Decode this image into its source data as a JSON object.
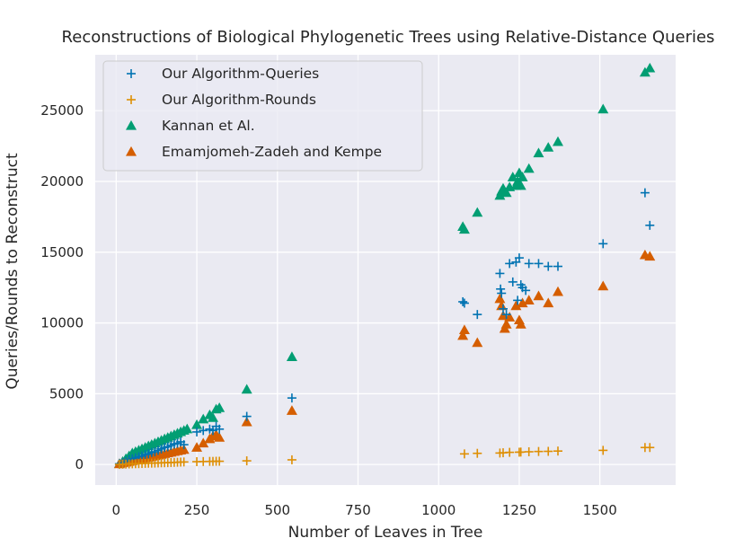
{
  "chart_data": {
    "type": "scatter",
    "title": "Reconstructions of Biological Phylogenetic Trees using Relative-Distance Queries",
    "xlabel": "Number of Leaves in Tree",
    "ylabel": "Queries/Rounds to Reconstruct",
    "xlim": [
      -65,
      1735
    ],
    "ylim": [
      -1450,
      28950
    ],
    "xticks": [
      0,
      250,
      500,
      750,
      1000,
      1250,
      1500
    ],
    "yticks": [
      0,
      5000,
      10000,
      15000,
      20000,
      25000
    ],
    "x_tick_labels": [
      "0",
      "250",
      "500",
      "750",
      "1000",
      "1250",
      "1500"
    ],
    "y_tick_labels": [
      "0",
      "5000",
      "10000",
      "15000",
      "20000",
      "25000"
    ],
    "grid": true,
    "legend_position": "top-left",
    "series": [
      {
        "name": "Our Algorithm-Queries",
        "marker": "plus",
        "color": "#0173b2",
        "x": [
          10,
          20,
          30,
          40,
          50,
          60,
          70,
          80,
          90,
          100,
          110,
          120,
          130,
          140,
          150,
          160,
          170,
          180,
          190,
          200,
          210,
          250,
          270,
          290,
          300,
          310,
          320,
          405,
          545,
          1075,
          1080,
          1120,
          1190,
          1192,
          1195,
          1200,
          1210,
          1220,
          1230,
          1240,
          1245,
          1250,
          1255,
          1260,
          1270,
          1280,
          1310,
          1340,
          1370,
          1510,
          1640,
          1655
        ],
        "y": [
          50,
          130,
          240,
          350,
          400,
          470,
          550,
          600,
          700,
          750,
          850,
          900,
          1000,
          1100,
          1200,
          1250,
          1350,
          1450,
          1500,
          1600,
          1400,
          2300,
          2400,
          2500,
          2400,
          2700,
          2500,
          3400,
          4700,
          11500,
          11400,
          10600,
          13500,
          12400,
          12100,
          11000,
          10600,
          14200,
          12900,
          14300,
          11600,
          14600,
          12700,
          12500,
          12300,
          14200,
          14200,
          14000,
          14000,
          15600,
          19200,
          16900
        ]
      },
      {
        "name": "Our Algorithm-Rounds",
        "marker": "plus",
        "color": "#de8f05",
        "x": [
          10,
          20,
          30,
          40,
          50,
          60,
          70,
          80,
          90,
          100,
          110,
          120,
          130,
          140,
          150,
          160,
          170,
          180,
          190,
          200,
          210,
          250,
          270,
          290,
          300,
          310,
          320,
          405,
          545,
          1080,
          1120,
          1190,
          1200,
          1220,
          1250,
          1255,
          1280,
          1310,
          1340,
          1370,
          1510,
          1640,
          1655
        ],
        "y": [
          5,
          20,
          30,
          40,
          50,
          55,
          60,
          70,
          80,
          90,
          95,
          100,
          110,
          120,
          125,
          130,
          140,
          150,
          160,
          170,
          180,
          200,
          210,
          220,
          220,
          230,
          230,
          260,
          330,
          750,
          790,
          810,
          830,
          860,
          870,
          880,
          900,
          920,
          930,
          950,
          1000,
          1200,
          1200
        ]
      },
      {
        "name": "Kannan et Al.",
        "marker": "triangle",
        "color": "#029e73",
        "x": [
          10,
          20,
          30,
          40,
          50,
          60,
          70,
          80,
          90,
          100,
          110,
          120,
          130,
          140,
          150,
          160,
          170,
          180,
          190,
          200,
          210,
          220,
          250,
          270,
          290,
          300,
          310,
          320,
          405,
          545,
          1075,
          1080,
          1120,
          1190,
          1195,
          1200,
          1210,
          1220,
          1230,
          1240,
          1245,
          1250,
          1255,
          1260,
          1280,
          1310,
          1340,
          1370,
          1510,
          1640,
          1655
        ],
        "y": [
          50,
          200,
          400,
          600,
          800,
          900,
          1000,
          1100,
          1200,
          1300,
          1400,
          1500,
          1600,
          1700,
          1800,
          1900,
          2000,
          2100,
          2200,
          2300,
          2400,
          2500,
          2800,
          3200,
          3500,
          3300,
          3900,
          4000,
          5300,
          7600,
          16800,
          16600,
          17800,
          19000,
          19300,
          19500,
          19200,
          19600,
          20300,
          19700,
          20000,
          20600,
          19700,
          20300,
          20900,
          22000,
          22400,
          22800,
          25100,
          27700,
          28000
        ]
      },
      {
        "name": "Emamjomeh-Zadeh and Kempe",
        "marker": "triangle",
        "color": "#d55e00",
        "x": [
          10,
          20,
          30,
          40,
          50,
          60,
          70,
          80,
          90,
          100,
          110,
          120,
          130,
          140,
          150,
          160,
          170,
          180,
          190,
          200,
          210,
          250,
          270,
          290,
          300,
          310,
          320,
          405,
          545,
          1075,
          1080,
          1120,
          1190,
          1195,
          1200,
          1205,
          1210,
          1220,
          1240,
          1250,
          1255,
          1260,
          1280,
          1310,
          1340,
          1370,
          1510,
          1640,
          1655
        ],
        "y": [
          30,
          100,
          150,
          200,
          250,
          300,
          350,
          400,
          450,
          500,
          550,
          600,
          650,
          700,
          750,
          800,
          850,
          900,
          950,
          1000,
          1050,
          1200,
          1500,
          1800,
          2000,
          2100,
          1900,
          3000,
          3800,
          9100,
          9500,
          8600,
          11700,
          11200,
          10500,
          9600,
          9900,
          10400,
          11200,
          10200,
          9900,
          11400,
          11600,
          11900,
          11400,
          12200,
          12600,
          14800,
          14700
        ]
      }
    ]
  }
}
